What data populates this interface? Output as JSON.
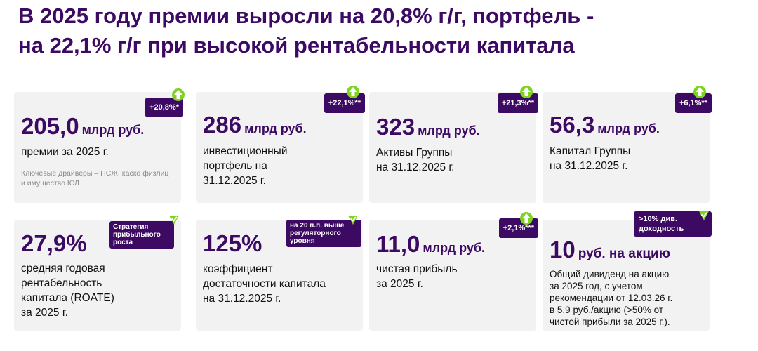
{
  "title": "В 2025 году премии выросли на 20,8% г/г, портфель -\nна 22,1% г/г при высокой рентабельности капитала",
  "colors": {
    "accent": "#3d0a63",
    "up": "#7ed321",
    "card_bg": "#f2f2f2"
  },
  "cards": [
    {
      "value": "205,0",
      "unit": "млрд руб.",
      "badge": "+20,8%*",
      "icon": "arrow-up-icon",
      "description": "премии за 2025 г.",
      "note": "Ключевые драйверы – НСЖ, каско физлиц\nи имущество ЮЛ"
    },
    {
      "value": "286",
      "unit": "млрд руб.",
      "badge": "+22,1%**",
      "icon": "arrow-up-icon",
      "description": "инвестиционный\nпортфель на\n31.12.2025 г."
    },
    {
      "value": "323",
      "unit": "млрд руб.",
      "badge": "+21,3%**",
      "icon": "arrow-up-icon",
      "description": "Активы Группы\nна 31.12.2025 г."
    },
    {
      "value": "56,3",
      "unit": "млрд руб.",
      "badge": "+6,1%**",
      "icon": "arrow-up-icon",
      "description": "Капитал Группы\nна 31.12.2025 г."
    },
    {
      "value": "27,9%",
      "unit": "",
      "badge": "Стратегия\nприбыльного\nроста",
      "icon": "check-icon",
      "description": "средняя годовая\nрентабельность\nкапитала (ROATE)\nза 2025 г."
    },
    {
      "value": "125%",
      "unit": "",
      "badge": "на 20 п.п. выше\nрегуляторного\nуровня",
      "icon": "check-icon",
      "description": "коэффициент\nдостаточности капитала\nна 31.12.2025 г."
    },
    {
      "value": "11,0",
      "unit": "млрд руб.",
      "badge": "+2,1%***",
      "icon": "arrow-up-icon",
      "description": "чистая прибыль\nза 2025 г."
    },
    {
      "value": "10",
      "unit": "руб. на акцию",
      "badge": ">10% див.\nдоходность",
      "icon": "check-icon",
      "description": "Общий дивиденд на акцию\nза 2025 год, с учетом\nрекомендации от 12.03.26 г.\nв 5,9 руб./акцию (>50% от\nчистой прибыли за 2025 г.)."
    }
  ]
}
